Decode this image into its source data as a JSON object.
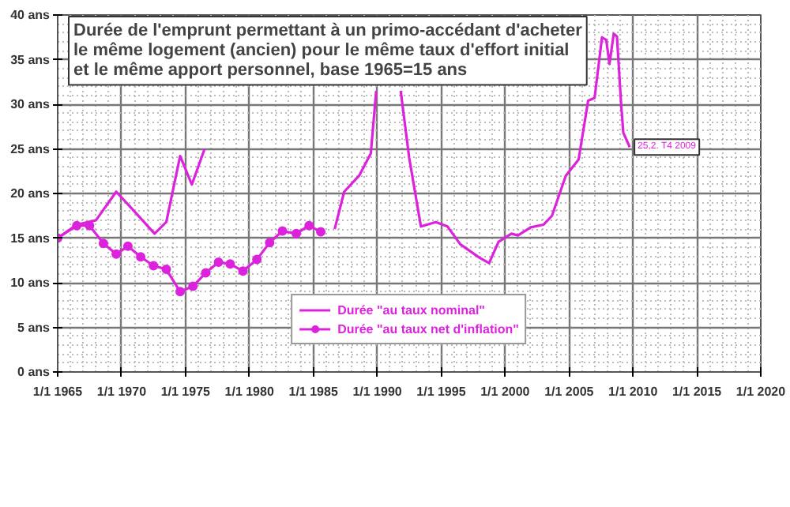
{
  "chart_data": {
    "type": "line",
    "title": "Durée de l'emprunt permettant à un primo-accédant d'acheter\nle même logement (ancien) pour le même taux d'effort initial\net le même apport personnel, base 1965=15 ans",
    "series": [
      {
        "name": "Durée \"au taux nominal\"",
        "color": "#dd22dd",
        "marker": "none",
        "x": [
          "1965-01",
          "1966-07",
          "1968-01",
          "1969-08",
          "1971-01",
          "1972-08",
          "1973-07",
          "1974-08",
          "1975-07",
          "1976-07",
          "1977-01",
          "1986-09",
          "1987-06",
          "1988-08",
          "1989-07",
          "1989-12",
          "1990-10",
          "1991-11",
          "1992-07",
          "1993-06",
          "1994-08",
          "1995-07",
          "1996-07",
          "1998-01",
          "1998-10",
          "1999-07",
          "2000-07",
          "2001-01",
          "2002-01",
          "2003-01",
          "2003-09",
          "2004-10",
          "2005-10",
          "2006-07",
          "2007-01",
          "2007-08",
          "2007-12",
          "2008-03",
          "2008-07",
          "2008-10",
          "2009-02",
          "2009-04",
          "2009-10"
        ],
        "values": [
          15,
          16.5,
          17,
          20.2,
          18,
          15.5,
          16.8,
          24.2,
          21,
          25,
          null,
          16,
          20.2,
          22,
          24.5,
          31.5,
          null,
          31.5,
          24,
          16.3,
          16.8,
          16.3,
          14.3,
          12.8,
          12.2,
          14.6,
          15.5,
          15.3,
          16.2,
          16.5,
          17.5,
          22,
          23.8,
          30.4,
          30.7,
          37.5,
          37.2,
          34.5,
          37.9,
          37.6,
          29.8,
          26.8,
          25.2
        ]
      },
      {
        "name": "Durée \"au taux net d'inflation\"",
        "color": "#dd22dd",
        "marker": "circle",
        "x": [
          "1965-01",
          "1966-07",
          "1967-07",
          "1968-08",
          "1969-08",
          "1970-07",
          "1971-07",
          "1972-07",
          "1973-07",
          "1974-08",
          "1975-08",
          "1976-08",
          "1977-08",
          "1978-07",
          "1979-07",
          "1980-08",
          "1981-08",
          "1982-08",
          "1983-09",
          "1984-09",
          "1985-08"
        ],
        "values": [
          15,
          16.4,
          16.4,
          14.4,
          13.2,
          14.1,
          12.9,
          11.9,
          11.5,
          9.0,
          9.6,
          11.1,
          12.3,
          12.1,
          11.3,
          12.6,
          14.5,
          15.8,
          15.5,
          16.4,
          15.7
        ]
      }
    ],
    "xlim": [
      "1965-01-01",
      "2020-01-01"
    ],
    "ylim": [
      0,
      40
    ],
    "xticks": [
      {
        "value": "1965-01-01",
        "label": "1/1 1965"
      },
      {
        "value": "1970-01-01",
        "label": "1/1 1970"
      },
      {
        "value": "1975-01-01",
        "label": "1/1 1975"
      },
      {
        "value": "1980-01-01",
        "label": "1/1 1980"
      },
      {
        "value": "1985-01-01",
        "label": "1/1 1985"
      },
      {
        "value": "1990-01-01",
        "label": "1/1 1990"
      },
      {
        "value": "1995-01-01",
        "label": "1/1 1995"
      },
      {
        "value": "2000-01-01",
        "label": "1/1 2000"
      },
      {
        "value": "2005-01-01",
        "label": "1/1 2005"
      },
      {
        "value": "2010-01-01",
        "label": "1/1 2010"
      },
      {
        "value": "2015-01-01",
        "label": "1/1 2015"
      },
      {
        "value": "2020-01-01",
        "label": "1/1 2020"
      }
    ],
    "yticks": [
      {
        "value": 0,
        "label": "0 ans"
      },
      {
        "value": 5,
        "label": "5 ans"
      },
      {
        "value": 10,
        "label": "10 ans"
      },
      {
        "value": 15,
        "label": "15 ans"
      },
      {
        "value": 20,
        "label": "20 ans"
      },
      {
        "value": 25,
        "label": "25 ans"
      },
      {
        "value": 30,
        "label": "30 ans"
      },
      {
        "value": 35,
        "label": "35 ans"
      },
      {
        "value": 40,
        "label": "40 ans"
      }
    ],
    "annotations": [
      {
        "text": "25,2. T4 2009",
        "x": "2009-10",
        "y": 25.2
      }
    ],
    "grid": true,
    "legend": "bottom",
    "line_style": "solid"
  }
}
